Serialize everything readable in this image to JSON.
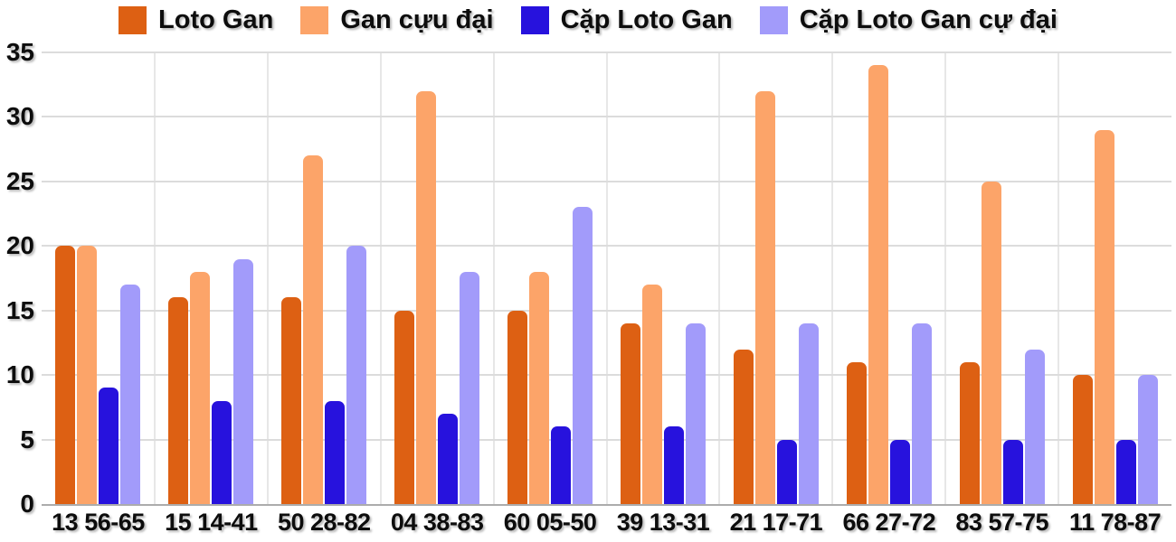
{
  "chart_data": {
    "type": "bar",
    "title": "",
    "xlabel": "",
    "ylabel": "",
    "categories": [
      "13 56-65",
      "15 14-41",
      "50 28-82",
      "04 38-83",
      "60 05-50",
      "39 13-31",
      "21 17-71",
      "66 27-72",
      "83 57-75",
      "11 78-87"
    ],
    "series": [
      {
        "name": "Loto Gan",
        "color": "#dd6013",
        "values": [
          20,
          16,
          16,
          15,
          15,
          14,
          12,
          11,
          11,
          10
        ]
      },
      {
        "name": "Gan cựu đại",
        "color": "#fca469",
        "values": [
          20,
          18,
          27,
          32,
          18,
          17,
          32,
          34,
          25,
          29
        ]
      },
      {
        "name": "Cặp Loto Gan",
        "color": "#2712dd",
        "values": [
          9,
          8,
          8,
          7,
          6,
          6,
          5,
          5,
          5,
          5
        ]
      },
      {
        "name": "Cặp Loto Gan cự đại",
        "color": "#a29bfa",
        "values": [
          17,
          19,
          20,
          18,
          23,
          14,
          14,
          14,
          12,
          10
        ]
      }
    ],
    "ylim": [
      0,
      35
    ],
    "yticks": [
      0,
      5,
      10,
      15,
      20,
      25,
      30,
      35
    ],
    "grid": true,
    "legend_position": "top"
  },
  "colors": {
    "background": "#ffffff",
    "text": "#0d0d0d",
    "gridline_horizontal": "#dcdcdc",
    "gridline_vertical": "#e7e7e7",
    "axis_line": "#acacac"
  }
}
